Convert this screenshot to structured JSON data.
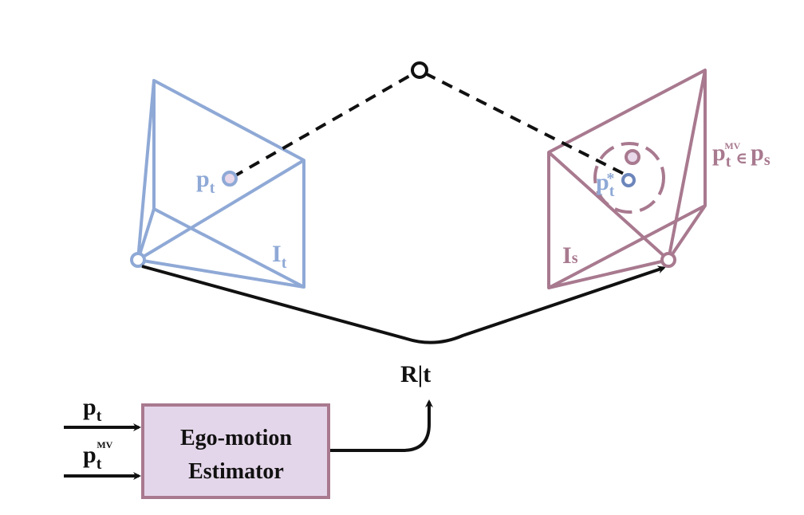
{
  "colors": {
    "target_camera": "#8fa9d6",
    "source_camera": "#a8798f",
    "box_fill": "#e4d6ea",
    "box_stroke": "#a8798f",
    "arrow": "#111111"
  },
  "icons": {
    "world_point": "hollow-circle",
    "target_origin": "hollow-circle",
    "source_origin": "hollow-circle"
  },
  "target_frame": {
    "label_main": "I",
    "label_sub": "t"
  },
  "source_frame": {
    "label_main": "I",
    "label_sub": "s"
  },
  "target_point": {
    "label_main": "p",
    "label_sub": "t"
  },
  "projected_point": {
    "label_main": "p",
    "label_sub": "t",
    "label_sup": "*"
  },
  "correspondence": {
    "label_main": "p",
    "label_sub": "t",
    "label_sup": "MV",
    "relation": "∈",
    "set_main": "p",
    "set_sub": "s"
  },
  "pose": {
    "label": "R|t"
  },
  "inputs": [
    {
      "label_main": "p",
      "label_sub": "t",
      "label_sup": ""
    },
    {
      "label_main": "p",
      "label_sub": "t",
      "label_sup": "MV"
    }
  ],
  "estimator": {
    "line1": "Ego-motion",
    "line2": "Estimator"
  }
}
